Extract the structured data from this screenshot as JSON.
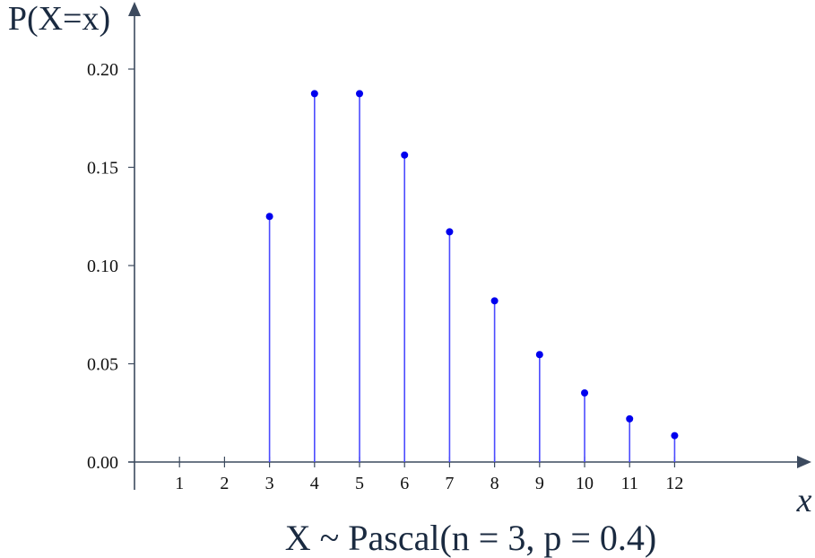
{
  "chart_data": {
    "type": "stem",
    "x": [
      3,
      4,
      5,
      6,
      7,
      8,
      9,
      10,
      11,
      12
    ],
    "y": [
      0.125,
      0.1875,
      0.1875,
      0.15625,
      0.1171875,
      0.08203125,
      0.0546875,
      0.03515625,
      0.02197266,
      0.01342773
    ],
    "xticks": [
      "1",
      "2",
      "3",
      "4",
      "5",
      "6",
      "7",
      "8",
      "9",
      "10",
      "11",
      "12"
    ],
    "yticks": [
      "0.00",
      "0.05",
      "0.10",
      "0.15",
      "0.20"
    ],
    "xlim": [
      0.0,
      14.8
    ],
    "ylim": [
      0.0,
      0.22
    ],
    "ylabel": "P(X=x)",
    "xlabel": "x",
    "title": "X ~ Pascal(n = 3, p = 0.4)",
    "series_color": "#0000ee",
    "axis_color": "#3c4a5e",
    "grid": false
  }
}
